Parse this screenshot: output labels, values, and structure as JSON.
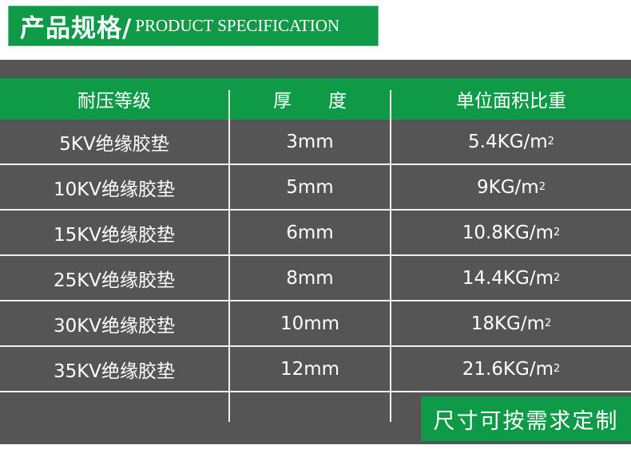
{
  "title": {
    "cn": "产品规格/",
    "en": "PRODUCT SPECIFICATION"
  },
  "table": {
    "headers": [
      "耐压等级",
      "厚　　度",
      "单位面积比重"
    ],
    "rows": [
      [
        "5KV绝缘胶垫",
        "3mm",
        "5.4KG/m",
        "2"
      ],
      [
        "10KV绝缘胶垫",
        "5mm",
        "9KG/m",
        "2"
      ],
      [
        "15KV绝缘胶垫",
        "6mm",
        "10.8KG/m",
        "2"
      ],
      [
        "25KV绝缘胶垫",
        "8mm",
        "14.4KG/m",
        "2"
      ],
      [
        "30KV绝缘胶垫",
        "10mm",
        "18KG/m",
        "2"
      ],
      [
        "35KV绝缘胶垫",
        "12mm",
        "21.6KG/m",
        "2"
      ]
    ]
  },
  "footer": {
    "custom_label": "尺寸可按需求定制"
  },
  "colors": {
    "green": "#0f9a48",
    "dark": "#555555"
  }
}
